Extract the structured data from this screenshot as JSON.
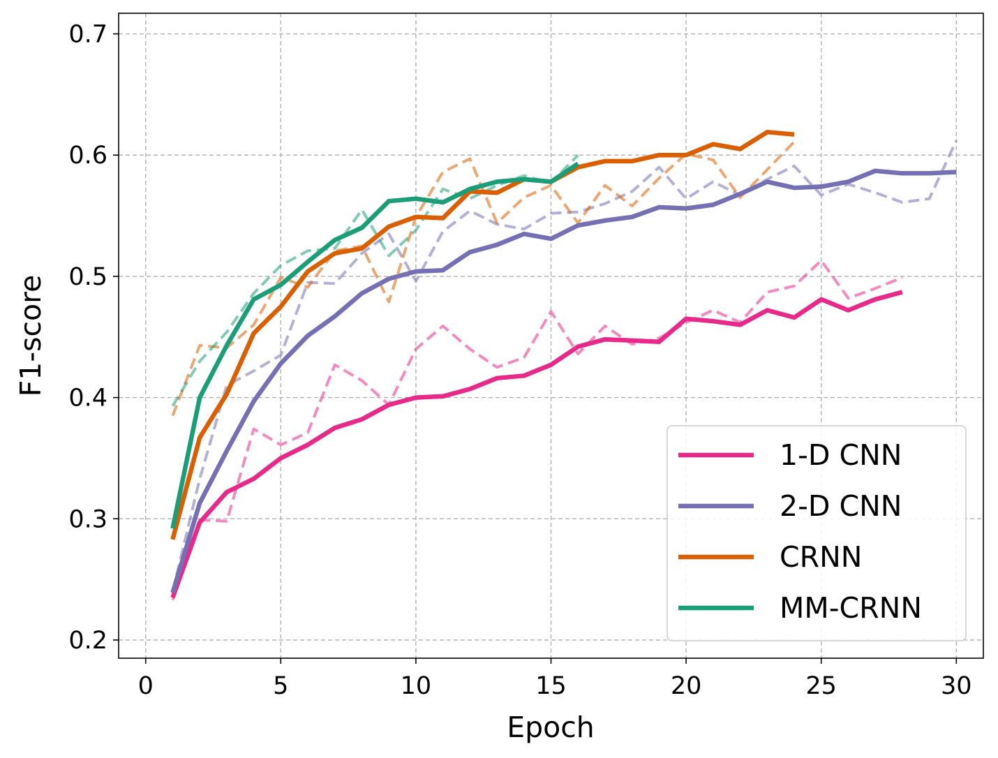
{
  "chart_data": {
    "type": "line",
    "xlabel": "Epoch",
    "ylabel": "F1-score",
    "xlim": [
      -1,
      31
    ],
    "ylim": [
      0.185,
      0.717
    ],
    "xticks": [
      0,
      5,
      10,
      15,
      20,
      25,
      30
    ],
    "yticks": [
      0.2,
      0.3,
      0.4,
      0.5,
      0.6,
      0.7
    ],
    "grid": true,
    "legend_position": "bottom-right",
    "legend": [
      "1-D CNN",
      "2-D CNN",
      "CRNN",
      "MM-CRNN"
    ],
    "series": [
      {
        "name": "1-D CNN",
        "color": "#e7298a",
        "solid": {
          "x": [
            1,
            2,
            3,
            4,
            5,
            6,
            7,
            8,
            9,
            10,
            11,
            12,
            13,
            14,
            15,
            16,
            17,
            18,
            19,
            20,
            21,
            22,
            23,
            24,
            25,
            26,
            27,
            28
          ],
          "y": [
            0.235,
            0.297,
            0.322,
            0.333,
            0.35,
            0.361,
            0.375,
            0.382,
            0.394,
            0.4,
            0.401,
            0.407,
            0.416,
            0.418,
            0.427,
            0.442,
            0.448,
            0.447,
            0.446,
            0.465,
            0.463,
            0.46,
            0.472,
            0.466,
            0.481,
            0.472,
            0.481,
            0.487
          ]
        },
        "dashed": {
          "x": [
            1,
            2,
            3,
            4,
            5,
            6,
            7,
            8,
            9,
            10,
            11,
            12,
            13,
            14,
            15,
            16,
            17,
            18,
            19,
            20,
            21,
            22,
            23,
            24,
            25,
            26,
            27,
            28
          ],
          "y": [
            0.233,
            0.299,
            0.298,
            0.374,
            0.361,
            0.371,
            0.427,
            0.414,
            0.394,
            0.44,
            0.459,
            0.44,
            0.425,
            0.433,
            0.471,
            0.436,
            0.459,
            0.444,
            0.449,
            0.462,
            0.472,
            0.462,
            0.487,
            0.492,
            0.513,
            0.482,
            0.49,
            0.499
          ]
        }
      },
      {
        "name": "2-D CNN",
        "color": "#7570b3",
        "solid": {
          "x": [
            1,
            2,
            3,
            4,
            5,
            6,
            7,
            8,
            9,
            10,
            11,
            12,
            13,
            14,
            15,
            16,
            17,
            18,
            19,
            20,
            21,
            22,
            23,
            24,
            25,
            26,
            27,
            28,
            29,
            30
          ],
          "y": [
            0.239,
            0.313,
            0.356,
            0.397,
            0.428,
            0.451,
            0.467,
            0.486,
            0.498,
            0.504,
            0.505,
            0.52,
            0.526,
            0.535,
            0.531,
            0.542,
            0.546,
            0.549,
            0.557,
            0.556,
            0.559,
            0.568,
            0.578,
            0.573,
            0.574,
            0.578,
            0.587,
            0.585,
            0.585,
            0.586
          ]
        },
        "dashed": {
          "x": [
            1,
            2,
            3,
            4,
            5,
            6,
            7,
            8,
            9,
            10,
            11,
            12,
            13,
            14,
            15,
            16,
            17,
            18,
            19,
            20,
            21,
            22,
            23,
            24,
            25,
            26,
            27,
            28,
            29,
            30
          ],
          "y": [
            0.24,
            0.333,
            0.41,
            0.422,
            0.435,
            0.495,
            0.494,
            0.519,
            0.535,
            0.496,
            0.537,
            0.554,
            0.543,
            0.539,
            0.552,
            0.553,
            0.56,
            0.57,
            0.59,
            0.564,
            0.578,
            0.567,
            0.58,
            0.591,
            0.567,
            0.576,
            0.569,
            0.561,
            0.564,
            0.612
          ]
        }
      },
      {
        "name": "CRNN",
        "color": "#d95f02",
        "solid": {
          "x": [
            1,
            2,
            3,
            4,
            5,
            6,
            7,
            8,
            9,
            10,
            11,
            12,
            13,
            14,
            15,
            16,
            17,
            18,
            19,
            20,
            21,
            22,
            23,
            24
          ],
          "y": [
            0.283,
            0.367,
            0.403,
            0.453,
            0.475,
            0.504,
            0.519,
            0.523,
            0.541,
            0.549,
            0.548,
            0.57,
            0.569,
            0.58,
            0.578,
            0.59,
            0.595,
            0.595,
            0.6,
            0.6,
            0.609,
            0.605,
            0.619,
            0.617
          ]
        },
        "dashed": {
          "x": [
            1,
            2,
            3,
            4,
            5,
            6,
            7,
            8,
            9,
            10,
            11,
            12,
            13,
            14,
            15,
            16,
            17,
            18,
            19,
            20,
            21,
            22,
            23,
            24
          ],
          "y": [
            0.385,
            0.443,
            0.441,
            0.46,
            0.499,
            0.491,
            0.521,
            0.525,
            0.479,
            0.549,
            0.586,
            0.597,
            0.544,
            0.565,
            0.575,
            0.544,
            0.575,
            0.558,
            0.581,
            0.601,
            0.596,
            0.565,
            0.588,
            0.611
          ]
        }
      },
      {
        "name": "MM-CRNN",
        "color": "#1b9e77",
        "solid": {
          "x": [
            1,
            2,
            3,
            4,
            5,
            6,
            7,
            8,
            9,
            10,
            11,
            12,
            13,
            14,
            15,
            16
          ],
          "y": [
            0.292,
            0.4,
            0.443,
            0.481,
            0.493,
            0.512,
            0.53,
            0.54,
            0.562,
            0.564,
            0.561,
            0.572,
            0.578,
            0.58,
            0.578,
            0.593
          ]
        },
        "dashed": {
          "x": [
            1,
            2,
            3,
            4,
            5,
            6,
            7,
            8,
            9,
            10,
            11,
            12,
            13,
            14,
            15,
            16
          ],
          "y": [
            0.393,
            0.43,
            0.454,
            0.486,
            0.509,
            0.521,
            0.523,
            0.555,
            0.517,
            0.538,
            0.572,
            0.564,
            0.575,
            0.583,
            0.577,
            0.6
          ]
        }
      }
    ]
  }
}
